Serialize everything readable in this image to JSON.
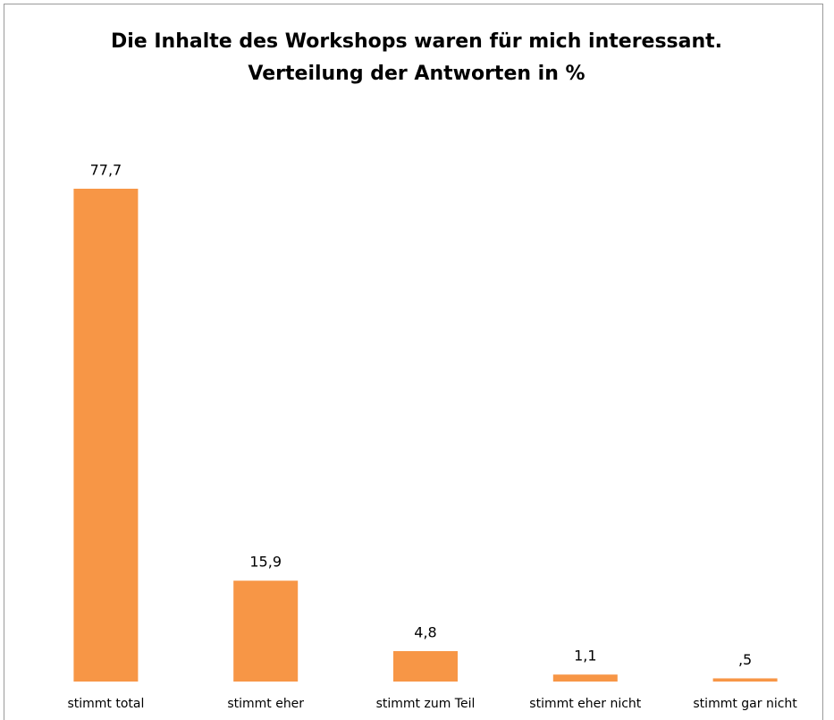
{
  "chart_data": {
    "type": "bar",
    "title": "Die Inhalte des Workshops waren für mich interessant.",
    "subtitle": "Verteilung der Antworten in %",
    "categories": [
      "stimmt total",
      "stimmt eher",
      "stimmt zum Teil",
      "stimmt eher nicht",
      "stimmt gar nicht"
    ],
    "values": [
      77.7,
      15.9,
      4.8,
      1.1,
      0.5
    ],
    "value_labels": [
      "77,7",
      "15,9",
      "4,8",
      "1,1",
      ",5"
    ],
    "color": "#f79646"
  }
}
